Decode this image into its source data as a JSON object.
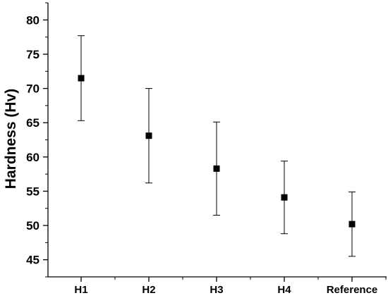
{
  "chart_data": {
    "type": "scatter",
    "categories": [
      "H1",
      "H2",
      "H3",
      "H4",
      "Reference"
    ],
    "values": [
      71.5,
      63.1,
      58.3,
      54.1,
      50.2
    ],
    "error_low": [
      65.3,
      56.2,
      51.5,
      48.8,
      45.5
    ],
    "error_high": [
      77.7,
      70.0,
      65.1,
      59.4,
      54.9
    ],
    "xlabel": "",
    "ylabel": "Hardness (Hv)",
    "ylim": [
      42.5,
      82.5
    ],
    "yticks": [
      45,
      50,
      55,
      60,
      65,
      70,
      75,
      80
    ],
    "grid": false,
    "marker": "square",
    "color": "#000000"
  }
}
